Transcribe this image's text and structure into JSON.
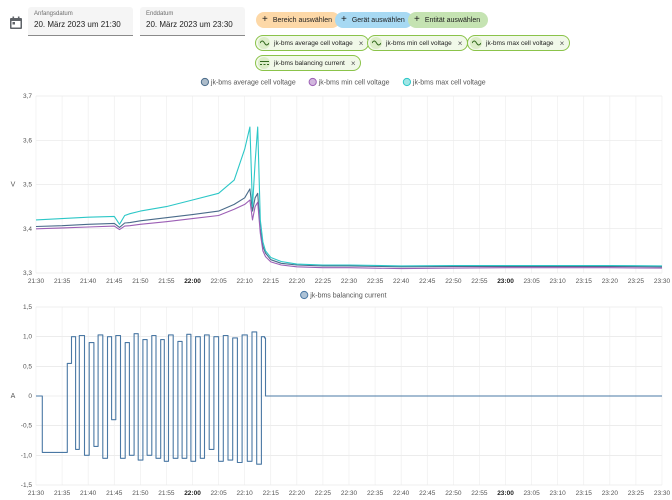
{
  "date_range": {
    "start_label": "Anfangsdatum",
    "start_value": "20. März 2023 um 21:30",
    "end_label": "Enddatum",
    "end_value": "20. März 2023 um 23:30"
  },
  "target_buttons": {
    "area": "Bereich auswählen",
    "device": "Gerät auswählen",
    "entity": "Entität auswählen"
  },
  "entity_chips": [
    {
      "label": "jk-bms average cell voltage",
      "icon": "sine-wave-icon"
    },
    {
      "label": "jk-bms min cell voltage",
      "icon": "sine-wave-icon"
    },
    {
      "label": "jk-bms max cell voltage",
      "icon": "sine-wave-icon"
    },
    {
      "label": "jk-bms balancing current",
      "icon": "current-icon"
    }
  ],
  "chart_data": [
    {
      "type": "line",
      "ylabel": "V",
      "ylim": [
        3.3,
        3.7
      ],
      "yticks": [
        "3,3",
        "3,4",
        "3,5",
        "3,6",
        "3,7"
      ],
      "xticks": [
        "21:30",
        "21:35",
        "21:40",
        "21:45",
        "21:50",
        "21:55",
        "22:00",
        "22:05",
        "22:10",
        "22:15",
        "22:20",
        "22:25",
        "22:30",
        "22:35",
        "22:40",
        "22:45",
        "22:50",
        "22:55",
        "23:00",
        "23:05",
        "23:10",
        "23:15",
        "23:20",
        "23:25",
        "23:30"
      ],
      "bold_xticks": [
        "22:00",
        "23:00"
      ],
      "grid": true,
      "legend_position": "top",
      "x_minutes": [
        0,
        5,
        10,
        15,
        16,
        17,
        18,
        20,
        25,
        30,
        35,
        38,
        40,
        41,
        41.5,
        42,
        42.5,
        43,
        43.5,
        44,
        45,
        47,
        50,
        55,
        60,
        70,
        80,
        90,
        100,
        110,
        120
      ],
      "series": [
        {
          "name": "jk-bms average cell voltage",
          "color": "#4a6b8a",
          "values": [
            3.405,
            3.407,
            3.41,
            3.412,
            3.403,
            3.413,
            3.414,
            3.418,
            3.425,
            3.432,
            3.44,
            3.455,
            3.47,
            3.49,
            3.44,
            3.47,
            3.48,
            3.4,
            3.36,
            3.345,
            3.33,
            3.322,
            3.318,
            3.316,
            3.316,
            3.314,
            3.315,
            3.315,
            3.315,
            3.315,
            3.314
          ]
        },
        {
          "name": "jk-bms min cell voltage",
          "color": "#9c5fb5",
          "values": [
            3.4,
            3.402,
            3.404,
            3.406,
            3.398,
            3.406,
            3.407,
            3.41,
            3.416,
            3.423,
            3.43,
            3.444,
            3.455,
            3.465,
            3.42,
            3.45,
            3.46,
            3.39,
            3.35,
            3.337,
            3.325,
            3.318,
            3.314,
            3.312,
            3.312,
            3.31,
            3.311,
            3.312,
            3.312,
            3.312,
            3.311
          ]
        },
        {
          "name": "jk-bms max cell voltage",
          "color": "#2cc7c7",
          "values": [
            3.42,
            3.423,
            3.426,
            3.428,
            3.41,
            3.43,
            3.434,
            3.44,
            3.45,
            3.465,
            3.48,
            3.51,
            3.58,
            3.63,
            3.45,
            3.55,
            3.63,
            3.42,
            3.37,
            3.35,
            3.335,
            3.326,
            3.32,
            3.318,
            3.318,
            3.316,
            3.317,
            3.317,
            3.317,
            3.317,
            3.316
          ]
        }
      ]
    },
    {
      "type": "line",
      "ylabel": "A",
      "ylim": [
        -1.5,
        1.5
      ],
      "yticks": [
        "-1,5",
        "-1,0",
        "-0,5",
        "0",
        "0,5",
        "1,0",
        "1,5"
      ],
      "xticks": [
        "21:30",
        "21:35",
        "21:40",
        "21:45",
        "21:50",
        "21:55",
        "22:00",
        "22:05",
        "22:10",
        "22:15",
        "22:20",
        "22:25",
        "22:30",
        "22:35",
        "22:40",
        "22:45",
        "22:50",
        "22:55",
        "23:00",
        "23:05",
        "23:10",
        "23:15",
        "23:20",
        "23:25",
        "23:30"
      ],
      "bold_xticks": [
        "22:00",
        "23:00"
      ],
      "grid": true,
      "legend_position": "top",
      "series": [
        {
          "name": "jk-bms balancing current",
          "color": "#4a78a4",
          "segments": [
            [
              1,
              0
            ],
            [
              1.2,
              -0.95
            ],
            [
              6,
              0.55
            ],
            [
              6.8,
              1.0
            ],
            [
              7.6,
              -0.9
            ],
            [
              8.3,
              1.02
            ],
            [
              9.3,
              -1.0
            ],
            [
              10.2,
              0.9
            ],
            [
              11.1,
              -0.85
            ],
            [
              11.9,
              1.03
            ],
            [
              12.8,
              -1.05
            ],
            [
              13.7,
              1.0
            ],
            [
              14.5,
              -0.4
            ],
            [
              15.3,
              1.02
            ],
            [
              16.2,
              -1.05
            ],
            [
              17.1,
              0.9
            ],
            [
              17.9,
              -1.0
            ],
            [
              18.8,
              1.05
            ],
            [
              19.6,
              -1.08
            ],
            [
              20.5,
              0.95
            ],
            [
              21.3,
              -1.0
            ],
            [
              22.2,
              1.02
            ],
            [
              23.0,
              -1.05
            ],
            [
              23.9,
              0.95
            ],
            [
              24.6,
              -1.1
            ],
            [
              25.4,
              1.03
            ],
            [
              26.3,
              -1.05
            ],
            [
              27.2,
              0.92
            ],
            [
              28.0,
              -1.05
            ],
            [
              28.9,
              1.04
            ],
            [
              29.7,
              -1.1
            ],
            [
              30.6,
              1.0
            ],
            [
              31.5,
              -1.05
            ],
            [
              32.3,
              1.03
            ],
            [
              33.2,
              -0.9
            ],
            [
              34.1,
              1.0
            ],
            [
              35.0,
              -1.1
            ],
            [
              35.9,
              1.02
            ],
            [
              36.8,
              -1.08
            ],
            [
              37.7,
              0.98
            ],
            [
              38.6,
              -1.12
            ],
            [
              39.5,
              1.03
            ],
            [
              40.5,
              -1.1
            ],
            [
              41.4,
              1.08
            ],
            [
              42.3,
              -1.15
            ],
            [
              43.2,
              1.0
            ],
            [
              43.8,
              0.98
            ],
            [
              44.0,
              0
            ],
            [
              120,
              0
            ]
          ]
        }
      ]
    }
  ]
}
